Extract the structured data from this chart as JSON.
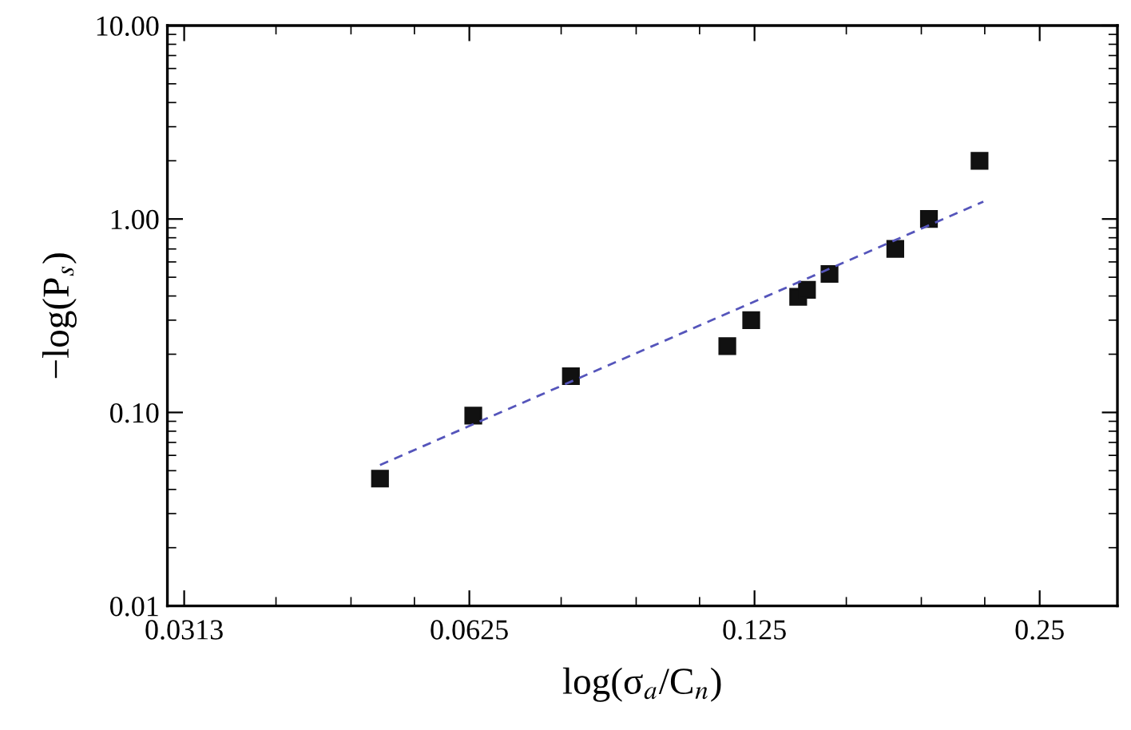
{
  "chart_data": {
    "type": "scatter",
    "xlabel": "log(σ$_{a}$/C$_{n}$)",
    "ylabel": "−log(P$_{s}$)",
    "log": "xy",
    "marker": "square",
    "grid": false,
    "legend": false,
    "xlim": [
      0.03,
      0.302
    ],
    "xticks": [
      {
        "value": 0.03125,
        "label": "0.0313"
      },
      0.0625,
      0.125,
      0.25
    ],
    "ylim": [
      0.01,
      10
    ],
    "yticks": [
      0.01,
      {
        "value": 0.1,
        "label": "0.10"
      },
      {
        "value": 1,
        "label": "1.00"
      },
      {
        "value": 10,
        "label": "10.00"
      }
    ],
    "series": [
      {
        "color": "#111111",
        "x": [
          0.0503,
          0.0631,
          0.08,
          0.117,
          0.124,
          0.139,
          0.142,
          0.15,
          0.176,
          0.191,
          0.216
        ],
        "values": [
          0.0455,
          0.0964,
          0.154,
          0.22,
          0.3,
          0.396,
          0.43,
          0.52,
          0.7,
          1.0,
          2.0
        ]
      },
      {
        "type": "line",
        "line_style": "dashed",
        "marker": "none",
        "color": "#5555bb",
        "x": [
          0.0503,
          0.218
        ],
        "values": [
          0.0535,
          1.23
        ]
      }
    ]
  }
}
